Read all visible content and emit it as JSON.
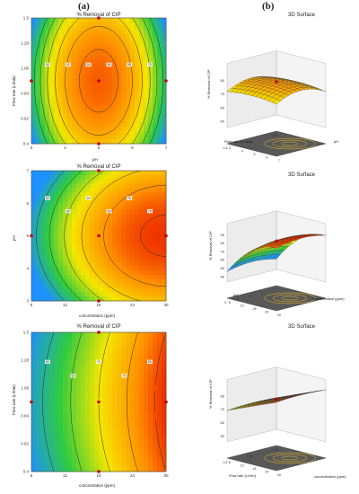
{
  "figure": {
    "label_a": "(a)",
    "label_b": "(b)"
  },
  "contours": [
    {
      "title": "% Removal of CIP",
      "xlabel": "pH",
      "ylabel": "Flow rate (L/min)",
      "xticks": [
        "3",
        "4",
        "5",
        "6",
        "7"
      ],
      "yticks": [
        "0.4",
        "0.62",
        "0.84",
        "1.06",
        "1.28",
        "1.5"
      ],
      "contour_labels": [
        "60",
        "62",
        "64",
        "66",
        "68",
        "70"
      ]
    },
    {
      "title": "% Removal of CIP",
      "xlabel": "concentration (ppm)",
      "ylabel": "pH",
      "xticks": [
        "6",
        "12",
        "18",
        "24",
        "30"
      ],
      "yticks": [
        "3",
        "4",
        "5",
        "6",
        "7"
      ],
      "contour_labels": [
        "50",
        "55",
        "60",
        "65",
        "70",
        "75"
      ]
    },
    {
      "title": "% Removal of CIP",
      "xlabel": "concentration (ppm)",
      "ylabel": "Flow rate (L/min)",
      "xticks": [
        "6",
        "12",
        "18",
        "24",
        "30"
      ],
      "yticks": [
        "0.4",
        "0.62",
        "0.84",
        "1.06",
        "1.28",
        "1.5"
      ],
      "contour_labels": [
        "60",
        "65",
        "70",
        "75",
        "80"
      ]
    }
  ],
  "surfaces": [
    {
      "title": "3D Surface",
      "zlabel": "% Removal of CIP",
      "xlabel": "Flow rate (L/min)",
      "ylabel": "pH",
      "zticks": [
        "50",
        "60",
        "70",
        "80"
      ],
      "xticks": [
        "0.4",
        "0.84",
        "1.28"
      ],
      "yticks": [
        "3",
        "4",
        "5",
        "6",
        "7"
      ]
    },
    {
      "title": "3D Surface",
      "zlabel": "% Removal of CIP",
      "xlabel": "pH",
      "ylabel": "concentration (ppm)",
      "zticks": [
        "40",
        "50",
        "60",
        "70",
        "80",
        "90"
      ],
      "xticks": [
        "3",
        "4",
        "5",
        "6",
        "7"
      ],
      "yticks": [
        "6",
        "12",
        "18",
        "24",
        "30"
      ]
    },
    {
      "title": "3D Surface",
      "zlabel": "% Removal of CIP",
      "xlabel": "Flow rate (L/min)",
      "ylabel": "concentration (ppm)",
      "zticks": [
        "50",
        "60",
        "70",
        "80"
      ],
      "xticks": [
        "0.4",
        "0.84",
        "1.28"
      ],
      "yticks": [
        "6",
        "12",
        "18",
        "24",
        "30"
      ]
    }
  ],
  "chart_data": [
    {
      "type": "heatmap",
      "title": "% Removal of CIP",
      "xlabel": "pH",
      "ylabel": "Flow rate (L/min)",
      "xlim": [
        3,
        7
      ],
      "ylim": [
        0.4,
        1.5
      ],
      "contour_levels": [
        60,
        62,
        64,
        66,
        68,
        70
      ],
      "design_points": [
        [
          5,
          1.5
        ],
        [
          5,
          0.4
        ],
        [
          3,
          0.95
        ],
        [
          7,
          0.95
        ],
        [
          5,
          0.95
        ]
      ],
      "colormap": [
        "#1e90ff",
        "#2ecc40",
        "#f5e600",
        "#ff8c00",
        "#e60000"
      ]
    },
    {
      "type": "heatmap",
      "title": "% Removal of CIP",
      "xlabel": "concentration (ppm)",
      "ylabel": "pH",
      "xlim": [
        6,
        30
      ],
      "ylim": [
        3,
        7
      ],
      "contour_levels": [
        50,
        55,
        60,
        65,
        70,
        75
      ],
      "design_points": [
        [
          18,
          7
        ],
        [
          18,
          3
        ],
        [
          6,
          5
        ],
        [
          30,
          5
        ],
        [
          18,
          5
        ]
      ],
      "colormap": [
        "#1e90ff",
        "#2ecc40",
        "#f5e600",
        "#ff8c00",
        "#e60000"
      ]
    },
    {
      "type": "heatmap",
      "title": "% Removal of CIP",
      "xlabel": "concentration (ppm)",
      "ylabel": "Flow rate (L/min)",
      "xlim": [
        6,
        30
      ],
      "ylim": [
        0.4,
        1.5
      ],
      "contour_levels": [
        60,
        65,
        70,
        75,
        80
      ],
      "design_points": [
        [
          18,
          1.5
        ],
        [
          18,
          0.4
        ],
        [
          6,
          0.95
        ],
        [
          30,
          0.95
        ],
        [
          18,
          0.95
        ]
      ],
      "colormap": [
        "#1e90ff",
        "#2ecc40",
        "#f5e600",
        "#ff8c00",
        "#e60000"
      ]
    }
  ]
}
